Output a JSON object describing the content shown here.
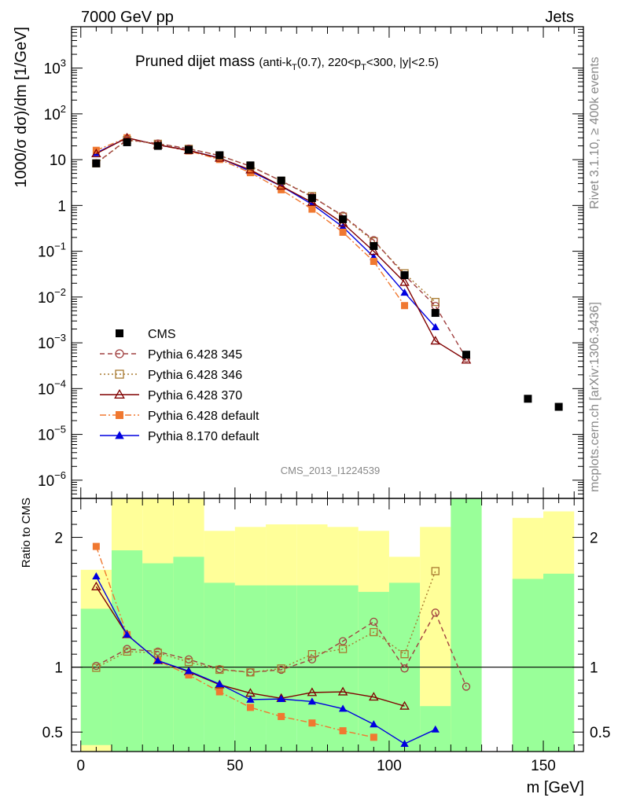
{
  "header": {
    "left": "7000 GeV pp",
    "right": "Jets",
    "rivet": "Rivet 3.1.10, ≥ 400k events",
    "mcplots": "mcplots.cern.ch [arXiv:1306.3436]",
    "analysis_id": "CMS_2013_I1224539"
  },
  "chart_data": [
    {
      "type": "scatter",
      "title": "Pruned dijet mass",
      "title_cuts": {
        "pre": "(anti-k",
        "sub1": "T",
        "mid": "(0.7), 220<p",
        "sub2": "T",
        "post": "<300, |y|<2.5)"
      },
      "ylabel": "1000/σ dσ)/dm [1/GeV]",
      "xlabel": "m [GeV]",
      "yscale": "log",
      "xlim": [
        -3,
        163
      ],
      "ylim": [
        4e-07,
        8000
      ],
      "ytick_labels": [
        {
          "e": -6,
          "label": "10",
          "sup": "−6"
        },
        {
          "e": -5,
          "label": "10",
          "sup": "−5"
        },
        {
          "e": -4,
          "label": "10",
          "sup": "−4"
        },
        {
          "e": -3,
          "label": "10",
          "sup": "−3"
        },
        {
          "e": -2,
          "label": "10",
          "sup": "−2"
        },
        {
          "e": -1,
          "label": "10",
          "sup": "−1"
        },
        {
          "e": 0,
          "label": "1",
          "sup": ""
        },
        {
          "e": 1,
          "label": "10",
          "sup": ""
        },
        {
          "e": 2,
          "label": "10",
          "sup": "2"
        },
        {
          "e": 3,
          "label": "10",
          "sup": "3"
        }
      ],
      "legend_position": "lower-left",
      "series": [
        {
          "name": "CMS",
          "color": "#000000",
          "marker": "square",
          "line": "none",
          "x": [
            5,
            15,
            25,
            35,
            45,
            55,
            65,
            75,
            85,
            95,
            105,
            115,
            125,
            145,
            155
          ],
          "y": [
            8.3,
            24,
            20,
            16.5,
            12.5,
            7.5,
            3.5,
            1.45,
            0.5,
            0.13,
            0.03,
            0.0045,
            0.00055,
            6e-05,
            4e-05
          ]
        },
        {
          "name": "Pythia 6.428 345",
          "color": "#a04040",
          "marker": "circle-open",
          "line": "dashed",
          "x": [
            5,
            15,
            25,
            35,
            45,
            55,
            65,
            75,
            85,
            95,
            105,
            115,
            125
          ],
          "y": [
            8.4,
            27.3,
            22.5,
            17.4,
            12.3,
            7.2,
            3.43,
            1.54,
            0.6,
            0.175,
            0.03,
            0.0064,
            0.00046
          ]
        },
        {
          "name": "Pythia 6.428 346",
          "color": "#a87a30",
          "marker": "square-open",
          "line": "dotted",
          "x": [
            5,
            15,
            25,
            35,
            45,
            55,
            65,
            75,
            85,
            95,
            105,
            115
          ],
          "y": [
            8.3,
            26.8,
            22.2,
            17.2,
            12.3,
            7.2,
            3.45,
            1.6,
            0.57,
            0.165,
            0.033,
            0.0078
          ]
        },
        {
          "name": "Pythia 6.428 370",
          "color": "#800000",
          "marker": "triangle-open",
          "line": "solid",
          "x": [
            5,
            15,
            25,
            35,
            45,
            55,
            65,
            75,
            85,
            95,
            105,
            115,
            125
          ],
          "y": [
            13.5,
            30,
            21,
            15.9,
            10.8,
            6.0,
            2.66,
            1.17,
            0.41,
            0.1,
            0.021,
            0.0011,
            0.00042
          ]
        },
        {
          "name": "Pythia 6.428 default",
          "color": "#f07830",
          "marker": "square",
          "line": "dashdot",
          "x": [
            5,
            15,
            25,
            35,
            45,
            55,
            65,
            75,
            85,
            95,
            105
          ],
          "y": [
            16,
            30,
            21,
            15.5,
            10.1,
            5.2,
            2.2,
            0.83,
            0.26,
            0.06,
            0.0065
          ]
        },
        {
          "name": "Pythia 8.170 default",
          "color": "#0000e0",
          "marker": "triangle",
          "line": "solid",
          "x": [
            5,
            15,
            25,
            35,
            45,
            55,
            65,
            75,
            85,
            95,
            105,
            115
          ],
          "y": [
            14,
            30,
            21,
            16,
            10.9,
            5.6,
            2.65,
            1.06,
            0.34,
            0.075,
            0.0125,
            0.0022
          ]
        }
      ]
    },
    {
      "type": "scatter",
      "ylabel": "Ratio to CMS",
      "xlabel": "m [GeV]",
      "ylim": [
        0.35,
        2.3
      ],
      "xticks": [
        0,
        50,
        100,
        150
      ],
      "yticks": [
        0.5,
        1,
        2
      ],
      "reference_line": 1,
      "bands": [
        {
          "x0": 0,
          "x1": 10,
          "g0": 0.4,
          "g1": 1.45,
          "y0": 0.35,
          "y1": 1.75
        },
        {
          "x0": 10,
          "x1": 20,
          "g0": 0.35,
          "g1": 1.9,
          "y0": 0.35,
          "y1": 2.3
        },
        {
          "x0": 20,
          "x1": 30,
          "g0": 0.35,
          "g1": 1.8,
          "y0": 0.35,
          "y1": 2.3
        },
        {
          "x0": 30,
          "x1": 40,
          "g0": 0.35,
          "g1": 1.85,
          "y0": 0.35,
          "y1": 2.3
        },
        {
          "x0": 40,
          "x1": 50,
          "g0": 0.35,
          "g1": 1.65,
          "y0": 0.55,
          "y1": 2.05
        },
        {
          "x0": 50,
          "x1": 60,
          "g0": 0.35,
          "g1": 1.63,
          "y0": 0.6,
          "y1": 2.08
        },
        {
          "x0": 60,
          "x1": 70,
          "g0": 0.35,
          "g1": 1.63,
          "y0": 0.55,
          "y1": 2.1
        },
        {
          "x0": 70,
          "x1": 80,
          "g0": 0.35,
          "g1": 1.63,
          "y0": 0.55,
          "y1": 2.1
        },
        {
          "x0": 80,
          "x1": 90,
          "g0": 0.35,
          "g1": 1.63,
          "y0": 0.6,
          "y1": 2.08
        },
        {
          "x0": 90,
          "x1": 100,
          "g0": 0.35,
          "g1": 1.58,
          "y0": 0.5,
          "y1": 2.05
        },
        {
          "x0": 100,
          "x1": 110,
          "g0": 0.35,
          "g1": 1.65,
          "y0": 0.7,
          "y1": 1.85
        },
        {
          "x0": 110,
          "x1": 120,
          "g0": 0.35,
          "g1": 0.7,
          "y0": 0.35,
          "y1": 2.08
        },
        {
          "x0": 120,
          "x1": 130,
          "g0": 0.35,
          "g1": 2.3,
          "y0": 0.35,
          "y1": 2.3
        },
        {
          "x0": 140,
          "x1": 150,
          "g0": 0.35,
          "g1": 1.68,
          "y0": 0.35,
          "y1": 2.15
        },
        {
          "x0": 150,
          "x1": 160,
          "g0": 0.35,
          "g1": 1.72,
          "y0": 0.35,
          "y1": 2.2
        }
      ],
      "series": [
        {
          "name": "Pythia 6.428 345",
          "color": "#a04040",
          "marker": "circle-open",
          "line": "dashed",
          "x": [
            5,
            15,
            25,
            35,
            45,
            55,
            65,
            75,
            85,
            95,
            105,
            115,
            125
          ],
          "y": [
            1.01,
            1.14,
            1.12,
            1.06,
            0.985,
            0.96,
            0.98,
            1.06,
            1.2,
            1.35,
            0.99,
            1.42,
            0.85
          ]
        },
        {
          "name": "Pythia 6.428 346",
          "color": "#a87a30",
          "marker": "square-open",
          "line": "dotted",
          "x": [
            5,
            15,
            25,
            35,
            45,
            55,
            65,
            75,
            85,
            95,
            105,
            115
          ],
          "y": [
            0.995,
            1.12,
            1.11,
            1.04,
            0.98,
            0.96,
            0.99,
            1.1,
            1.14,
            1.27,
            1.1,
            1.74
          ]
        },
        {
          "name": "Pythia 6.428 370",
          "color": "#800000",
          "marker": "triangle-open",
          "line": "solid",
          "x": [
            5,
            15,
            25,
            35,
            45,
            55,
            65,
            75,
            85,
            95,
            105
          ],
          "y": [
            1.62,
            1.25,
            1.05,
            0.965,
            0.865,
            0.8,
            0.76,
            0.805,
            0.81,
            0.77,
            0.7
          ]
        },
        {
          "name": "Pythia 6.428 default",
          "color": "#f07830",
          "marker": "square",
          "line": "dashdot",
          "x": [
            5,
            15,
            25,
            35,
            45,
            55,
            65,
            75,
            85,
            95
          ],
          "y": [
            1.93,
            1.25,
            1.05,
            0.94,
            0.81,
            0.69,
            0.62,
            0.57,
            0.51,
            0.46
          ]
        },
        {
          "name": "Pythia 8.170 default",
          "color": "#0000e0",
          "marker": "triangle",
          "line": "solid",
          "x": [
            5,
            15,
            25,
            35,
            45,
            55,
            65,
            75,
            85,
            95,
            105,
            115
          ],
          "y": [
            1.7,
            1.25,
            1.05,
            0.97,
            0.87,
            0.75,
            0.755,
            0.735,
            0.68,
            0.56,
            0.41,
            0.52
          ]
        }
      ]
    }
  ]
}
